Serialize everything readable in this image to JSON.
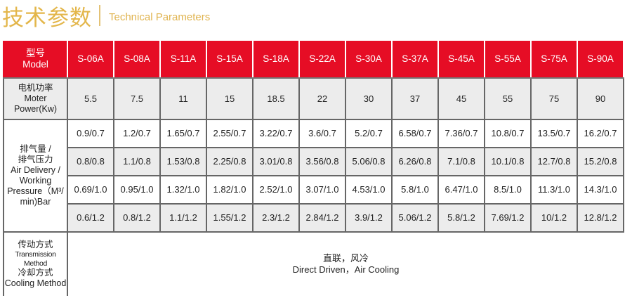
{
  "heading": {
    "cn": "技术参数",
    "en": "Technical Parameters"
  },
  "colors": {
    "accent": "#e60d25",
    "title": "#e3b64a"
  },
  "table": {
    "model_label": {
      "cn": "型号",
      "en": "Model"
    },
    "models": [
      "S-06A",
      "S-08A",
      "S-11A",
      "S-15A",
      "S-18A",
      "S-22A",
      "S-30A",
      "S-37A",
      "S-45A",
      "S-55A",
      "S-75A",
      "S-90A"
    ],
    "power_label": {
      "cn": "电机功率",
      "en1": "Moter",
      "en2": "Power(Kw)"
    },
    "power": [
      "5.5",
      "7.5",
      "11",
      "15",
      "18.5",
      "22",
      "30",
      "37",
      "45",
      "55",
      "75",
      "90"
    ],
    "air_label": {
      "cn1": "排气量 /",
      "cn2": "排气压力",
      "en1": "Air Delivery /",
      "en2": "Working",
      "en3": "Pressure（M³/",
      "en4": "min)Bar"
    },
    "air_rows": [
      [
        "0.9/0.7",
        "1.2/0.7",
        "1.65/0.7",
        "2.55/0.7",
        "3.22/0.7",
        "3.6/0.7",
        "5.2/0.7",
        "6.58/0.7",
        "7.36/0.7",
        "10.8/0.7",
        "13.5/0.7",
        "16.2/0.7"
      ],
      [
        "0.8/0.8",
        "1.1/0.8",
        "1.53/0.8",
        "2.25/0.8",
        "3.01/0.8",
        "3.56/0.8",
        "5.06/0.8",
        "6.26/0.8",
        "7.1/0.8",
        "10.1/0.8",
        "12.7/0.8",
        "15.2/0.8"
      ],
      [
        "0.69/1.0",
        "0.95/1.0",
        "1.32/1.0",
        "1.82/1.0",
        "2.52/1.0",
        "3.07/1.0",
        "4.53/1.0",
        "5.8/1.0",
        "6.47/1.0",
        "8.5/1.0",
        "11.3/1.0",
        "14.3/1.0"
      ],
      [
        "0.6/1.2",
        "0.8/1.2",
        "1.1/1.2",
        "1.55/1.2",
        "2.3/1.2",
        "2.84/1.2",
        "3.9/1.2",
        "5.06/1.2",
        "5.8/1.2",
        "7.69/1.2",
        "10/1.2",
        "12.8/1.2"
      ]
    ],
    "method_label": {
      "cn1": "传动方式",
      "en1": "Transmission Method",
      "cn2": "冷却方式",
      "en2": "Cooling Method"
    },
    "method_value": {
      "cn": "直联，风冷",
      "en": "Direct Driven，Air Cooling"
    }
  }
}
